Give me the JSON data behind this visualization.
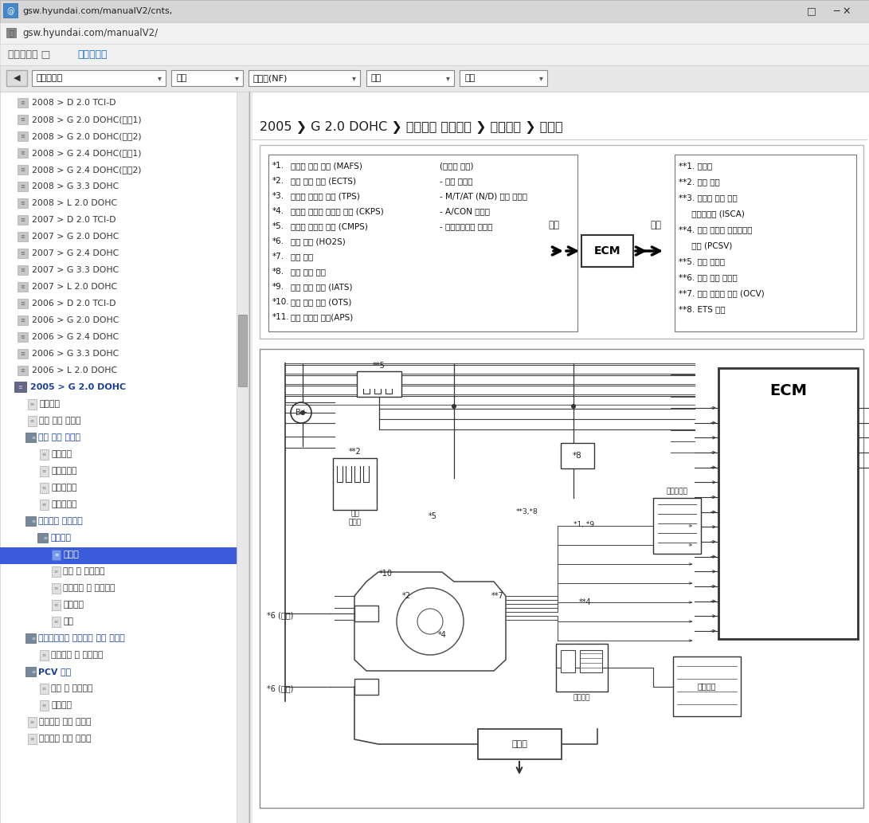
{
  "title_bar": "gsw.hyundai.com/manualV2/cnts,",
  "url_bar": "gsw.hyundai.com/manualV2/",
  "breadcrumb_plain": "정비매뉴얼 □ ",
  "breadcrumb_link": "정비지침서",
  "page_title": "2005 ❯ G 2.0 DOHC ❯ 배출가스 제어장치 ❯ 일반사항 ❯ 회로도",
  "nav_items": [
    "2008 > D 2.0 TCI-D",
    "2008 > G 2.0 DOHC(세퀁1)",
    "2008 > G 2.0 DOHC(세퀁2)",
    "2008 > G 2.4 DOHC(세퀁1)",
    "2008 > G 2.4 DOHC(세퀁2)",
    "2008 > G 3.3 DOHC",
    "2008 > L 2.0 DOHC",
    "2007 > D 2.0 TCI-D",
    "2007 > G 2.0 DOHC",
    "2007 > G 2.4 DOHC",
    "2007 > G 3.3 DOHC",
    "2007 > L 2.0 DOHC",
    "2006 > D 2.0 TCI-D",
    "2006 > G 2.0 DOHC",
    "2006 > G 2.4 DOHC",
    "2006 > G 3.3 DOHC",
    "2006 > L 2.0 DOHC"
  ],
  "active_group": "2005 > G 2.0 DOHC",
  "sub_items": [
    {
      "indent": 1,
      "text": "일반사항",
      "active": false,
      "blue_bold": false,
      "page": true
    },
    {
      "indent": 1,
      "text": "엔진 기계 시스템",
      "active": false,
      "blue_bold": false,
      "page": true
    },
    {
      "indent": 1,
      "text": "엔진 전장 시스템",
      "active": false,
      "blue_bold": true,
      "page": false
    },
    {
      "indent": 2,
      "text": "일반사항",
      "active": false,
      "blue_bold": false,
      "page": true
    },
    {
      "indent": 2,
      "text": "점화시스템",
      "active": false,
      "blue_bold": false,
      "page": true
    },
    {
      "indent": 2,
      "text": "전원시스템",
      "active": false,
      "blue_bold": false,
      "page": true
    },
    {
      "indent": 2,
      "text": "시동시스템",
      "active": false,
      "blue_bold": false,
      "page": true
    },
    {
      "indent": 1,
      "text": "배출가스 제어장치",
      "active": false,
      "blue_bold": true,
      "page": false
    },
    {
      "indent": 2,
      "text": "일반사항",
      "active": false,
      "blue_bold": true,
      "page": false
    },
    {
      "indent": 3,
      "text": "회로도",
      "active": true,
      "blue_bold": false,
      "page": true
    },
    {
      "indent": 3,
      "text": "개요 및 작동원리",
      "active": false,
      "blue_bold": false,
      "page": true
    },
    {
      "indent": 3,
      "text": "구성부품 및 부품위치",
      "active": false,
      "blue_bold": false,
      "page": true
    },
    {
      "indent": 3,
      "text": "고장진단",
      "active": false,
      "blue_bold": false,
      "page": true
    },
    {
      "indent": 3,
      "text": "제원",
      "active": false,
      "blue_bold": false,
      "page": true
    },
    {
      "indent": 1,
      "text": "크랭크케이스 배출가스 제어 시스템",
      "active": false,
      "blue_bold": true,
      "page": false
    },
    {
      "indent": 2,
      "text": "구성부품 및 부품위치",
      "active": false,
      "blue_bold": false,
      "page": true
    },
    {
      "indent": 1,
      "text": "PCV 밸브",
      "active": false,
      "blue_bold": true,
      "page": false
    },
    {
      "indent": 2,
      "text": "개요 및 작동원리",
      "active": false,
      "blue_bold": false,
      "page": true
    },
    {
      "indent": 2,
      "text": "정비절차",
      "active": false,
      "blue_bold": false,
      "page": true
    },
    {
      "indent": 1,
      "text": "증발가스 제어 시스템",
      "active": false,
      "blue_bold": false,
      "page": true
    },
    {
      "indent": 1,
      "text": "배기가스 제어 시스템",
      "active": false,
      "blue_bold": false,
      "page": true
    }
  ],
  "dropdown1": "정비지침서",
  "dropdown2": "승용",
  "dropdown3": "소나타(NF)",
  "dropdown4": "연식",
  "dropdown5": "엔진",
  "input_items": [
    {
      "num": "*1.",
      "text": "공기량 측정 센서 (MAFS)",
      "right": "(스위치 입력)"
    },
    {
      "num": "*2.",
      "text": "냉각 수온 센서 (ECTS)",
      "right": "- 점화 스위치"
    },
    {
      "num": "*3.",
      "text": "스로듸 포지션 센서 (TPS)",
      "right": "- M/T/AT (N/D) 선택 스위치"
    },
    {
      "num": "*4.",
      "text": "크랭크 샴프트 포지션 센서 (CKPS)",
      "right": "- A/CON 스위치"
    },
    {
      "num": "*5.",
      "text": "캄샴트 포지션 센서 (CMPS)",
      "right": "- 파워스티어링 스위치"
    },
    {
      "num": "*6.",
      "text": "산소 센서 (HO2S)",
      "right": ""
    },
    {
      "num": "*7.",
      "text": "노크 센서",
      "right": ""
    },
    {
      "num": "*8.",
      "text": "차량 속도 센서",
      "right": ""
    },
    {
      "num": "*9.",
      "text": "흡기 온도 센서 (IATS)",
      "right": ""
    },
    {
      "num": "*10.",
      "text": "오일 온도 센서 (OTS)",
      "right": ""
    },
    {
      "num": "*11.",
      "text": "액셌 포지션 센서(APS)",
      "right": ""
    }
  ],
  "output_items": [
    "**1. 인젝터",
    "**2. 점화 코일",
    "**3. 공회전 속도 제어",
    "     액취에이터 (ISCA)",
    "**4. 퍼지 컨트롤 솔레노이드",
    "     밸브 (PCSV)",
    "**5. 메인 릴레이",
    "**6. 연료 펜프 릴레이",
    "**7. 오일 컨트롤 밸브 (OCV)",
    "**8. ETS 모터"
  ],
  "ecm_label": "ECM",
  "input_label": "입력",
  "output_label": "출력",
  "label_ignition": "점화\n스윗치",
  "label_air_cleaner": "에어클리너",
  "label_fuel_tank": "연료탱크",
  "label_canister": "캐니스터",
  "label_muffler": "머플러",
  "label_6_front": "*6 (전방)",
  "label_6_rear": "*6 (후방)",
  "titlebar_color": "#d6d6d6",
  "addrbar_color": "#f2f2f2",
  "breadcrumb_color": "#f0f0f0",
  "toolbar_color": "#e8e8e8",
  "nav_bg": "#ffffff",
  "nav_active_bg": "#3b5bdb",
  "nav_active_fg": "#ffffff",
  "nav_normal_fg": "#333333",
  "nav_blue_fg": "#1a3ea0",
  "content_bg": "#ffffff",
  "diagram_border": "#888888",
  "line_color": "#333333"
}
